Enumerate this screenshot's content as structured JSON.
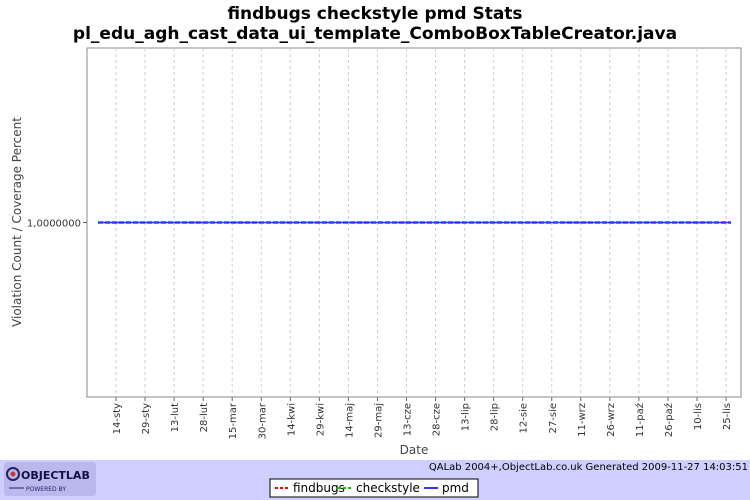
{
  "chart_data": {
    "type": "line",
    "title": "findbugs checkstyle pmd  Stats",
    "subtitle": "pl_edu_agh_cast_data_ui_template_ComboBoxTableCreator.java",
    "xlabel": "Date",
    "ylabel": "Violation Count / Coverage Percent",
    "x_tick_labels": [
      "14-sty",
      "29-sty",
      "13-lut",
      "28-lut",
      "15-mar",
      "30-mar",
      "14-kwi",
      "29-kwi",
      "14-maj",
      "29-maj",
      "13-cze",
      "28-cze",
      "13-lip",
      "28-lip",
      "12-sie",
      "27-sie",
      "11-wrz",
      "26-wrz",
      "11-paź",
      "26-paź",
      "10-lis",
      "25-lis"
    ],
    "y_tick_labels": [
      "1,0000000"
    ],
    "ylim": [
      0,
      2
    ],
    "grid": true,
    "legend_placement": "bottom-center",
    "series": [
      {
        "name": "findbugs",
        "color": "#ff0000",
        "style": "dashed",
        "value": 1
      },
      {
        "name": "checkstyle",
        "color": "#00cc00",
        "style": "dashed",
        "value": 1
      },
      {
        "name": "pmd",
        "color": "#3333ff",
        "style": "solid",
        "value": 1
      }
    ]
  },
  "credit": "QALab 2004+,ObjectLab.co.uk Generated 2009-11-27 14:03:51",
  "logo": {
    "name": "OBJECTLAB",
    "tagline": "POWERED BY"
  }
}
